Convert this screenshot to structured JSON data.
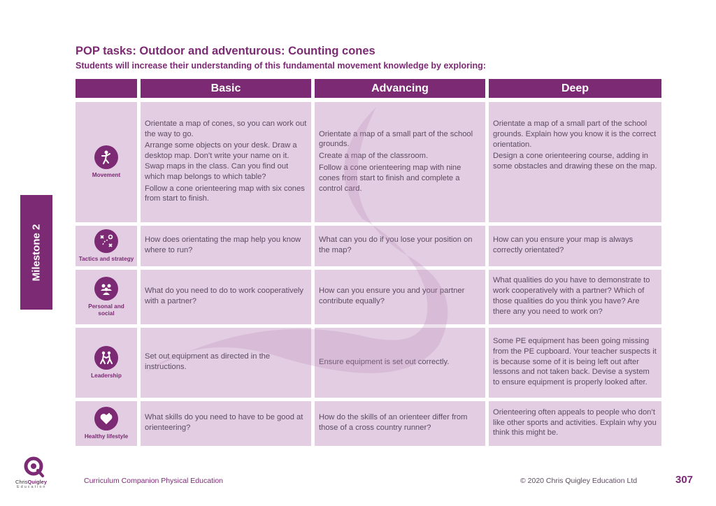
{
  "header": {
    "title": "POP tasks: Outdoor and adventurous: Counting cones",
    "subtitle": "Students will increase their understanding of this fundamental movement knowledge by exploring:"
  },
  "side_tab": {
    "label": "Milestone 2"
  },
  "columns": [
    "Basic",
    "Advancing",
    "Deep"
  ],
  "rows": [
    {
      "label": "Movement",
      "icon": "movement-icon",
      "basic": [
        "Orientate a map of cones, so you can work out the way to go.",
        "Arrange some objects on your desk. Draw a desktop map. Don’t write your name on it. Swap maps in the class. Can you find out which map belongs to which table?",
        "Follow a cone orienteering map with six cones from start to finish."
      ],
      "advancing": [
        "Orientate a map of a small part of the school grounds.",
        "Create a map of the classroom.",
        "Follow a cone orienteering map with nine cones from start to finish and complete a control card."
      ],
      "deep": [
        "Orientate a map of a small part of the school grounds. Explain how you know it is the correct orientation.",
        "Design a cone orienteering course, adding in some obstacles and drawing these on the map."
      ]
    },
    {
      "label": "Tactics and strategy",
      "icon": "tactics-icon",
      "basic": [
        "How does orientating the map help you know where to run?"
      ],
      "advancing": [
        "What can you do if you lose your position on the map?"
      ],
      "deep": [
        "How can you ensure your map is always correctly orientated?"
      ]
    },
    {
      "label": "Personal and social",
      "icon": "people-icon",
      "basic": [
        "What do you need to do to work cooperatively with a partner?"
      ],
      "advancing": [
        "How can you ensure you and your partner contribute equally?"
      ],
      "deep": [
        "What qualities do you have to demonstrate to work cooperatively with a partner? Which of those qualities do you think you have? Are there any you need to work on?"
      ]
    },
    {
      "label": "Leadership",
      "icon": "leadership-icon",
      "basic": [
        "Set out equipment as directed in the instructions."
      ],
      "advancing": [
        "Ensure equipment is set out correctly."
      ],
      "deep": [
        "Some PE equipment has been going missing from the PE cupboard. Your teacher suspects it is because some of it is being left out after lessons and not taken back. Devise a system to ensure equipment is properly looked after."
      ]
    },
    {
      "label": "Healthy lifestyle",
      "icon": "heart-plus-icon",
      "basic": [
        "What skills do you need to have to be good at orienteering?"
      ],
      "advancing": [
        "How do the skills of an orienteer differ from those of a cross country runner?"
      ],
      "deep": [
        "Orienteering often appeals to people who don’t like other sports and activities. Explain why you think this might be."
      ]
    }
  ],
  "footer": {
    "book": "Curriculum Companion Physical Education",
    "copyright": "© 2020 Chris Quigley Education Ltd",
    "page": "307",
    "logo_name_first": "Chris",
    "logo_name_second": "Quigley",
    "logo_sub": "Education"
  },
  "colors": {
    "accent": "#7b2a73",
    "cell": "#ddc4dd",
    "text": "#5e4c62"
  }
}
